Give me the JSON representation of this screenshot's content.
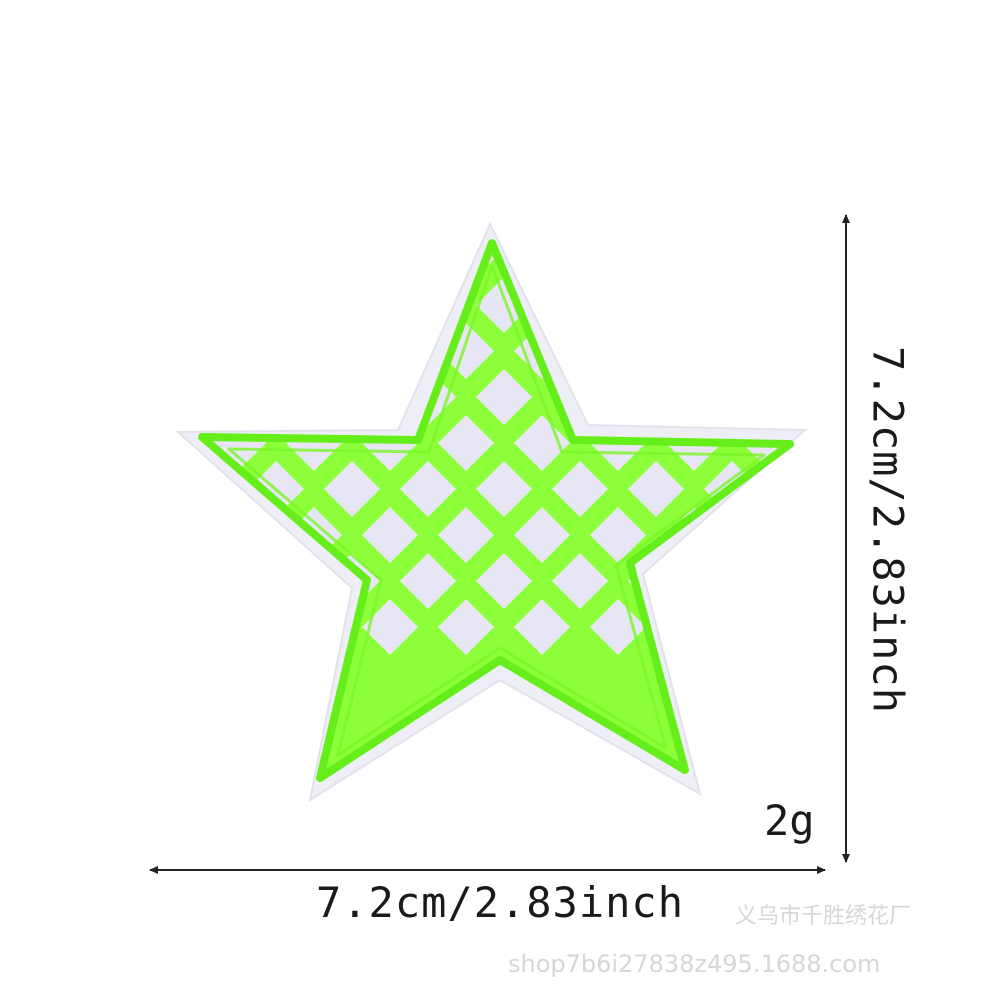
{
  "product": {
    "shape": "star",
    "colors": {
      "fill": "#8cff3a",
      "stitch_edge": "#66ee1a",
      "diamond": "#e8e6f4",
      "backing": "#eeeef6"
    }
  },
  "dimensions": {
    "width_label": "7.2cm/2.83inch",
    "height_label": "7.2cm/2.83inch",
    "weight_label": "2g"
  },
  "watermark": {
    "company": "义乌市千胜绣花厂",
    "url": "shop7b6i27838z495.1688.com"
  }
}
